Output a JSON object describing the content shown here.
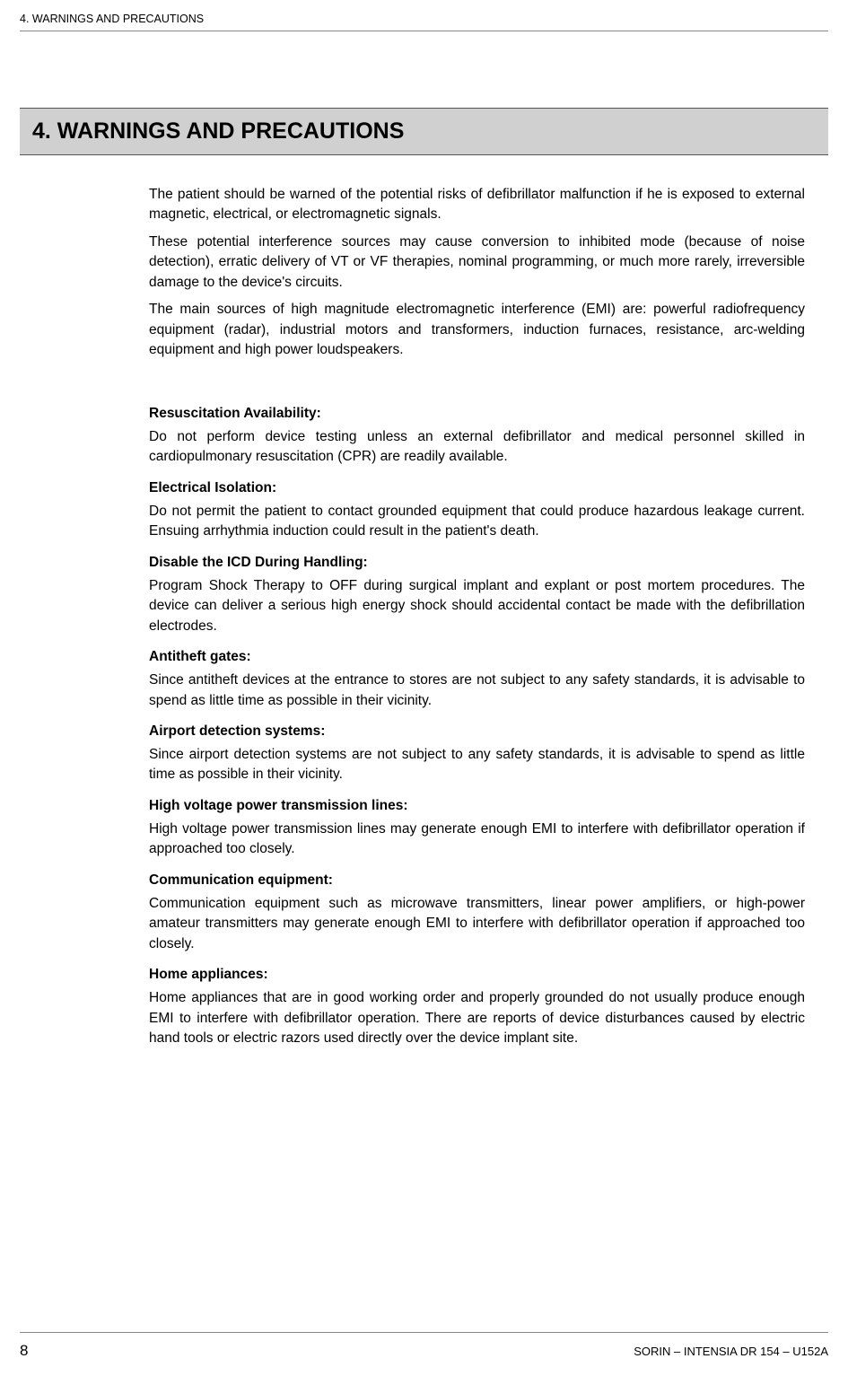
{
  "header": {
    "breadcrumb": "4.  WARNINGS AND PRECAUTIONS"
  },
  "section": {
    "title": "4.   WARNINGS AND PRECAUTIONS"
  },
  "intro": {
    "p1": "The patient should be warned of the potential risks of defibrillator malfunction if he is exposed to external magnetic, electrical, or electromagnetic signals.",
    "p2": "These potential interference sources may cause conversion to inhibited mode (because of noise detection), erratic delivery of VT or VF therapies, nominal programming, or much more rarely, irreversible damage to the device's circuits.",
    "p3": "The main sources of high magnitude electromagnetic interference (EMI) are: powerful radiofrequency equipment (radar), industrial motors and transformers, induction furnaces, resistance, arc-welding equipment and high power loudspeakers."
  },
  "sections": {
    "s1": {
      "heading": "Resuscitation Availability:",
      "body": "Do not perform device testing unless an external defibrillator and medical personnel skilled in cardiopulmonary resuscitation (CPR) are readily available."
    },
    "s2": {
      "heading": "Electrical Isolation:",
      "body": "Do not permit the patient to contact grounded equipment that could produce hazardous leakage current. Ensuing arrhythmia induction could result in the patient's death."
    },
    "s3": {
      "heading": "Disable the ICD During Handling:",
      "body": "Program Shock Therapy to OFF during surgical implant and explant or post mortem procedures. The device can deliver a serious high energy shock should accidental contact be made with the defibrillation electrodes."
    },
    "s4": {
      "heading": "Antitheft gates:",
      "body": "Since antitheft devices at the entrance to stores are not subject to any safety standards, it is advisable to spend as little time as possible in their vicinity."
    },
    "s5": {
      "heading": "Airport detection systems:",
      "body": "Since airport detection systems are not subject to any safety standards, it is advisable to spend as little time as possible in their vicinity."
    },
    "s6": {
      "heading": "High voltage power transmission lines:",
      "body": "High voltage power transmission lines may generate enough EMI to interfere with defibrillator operation if approached too closely."
    },
    "s7": {
      "heading": "Communication equipment:",
      "body": "Communication equipment such as microwave transmitters, linear power amplifiers, or high-power amateur transmitters may generate enough EMI to interfere with defibrillator operation if approached too closely."
    },
    "s8": {
      "heading": "Home appliances:",
      "body": "Home appliances that are in good working order and properly grounded do not usually produce enough EMI to interfere with defibrillator operation. There are reports of device disturbances caused by electric hand tools or electric razors used directly over the device implant site."
    }
  },
  "footer": {
    "page_number": "8",
    "right_text": "SORIN – INTENSIA DR 154 – U152A"
  },
  "colors": {
    "title_bar_bg": "#d0d0d0",
    "title_bar_border": "#555555",
    "rule": "#888888",
    "text": "#000000",
    "background": "#ffffff"
  }
}
